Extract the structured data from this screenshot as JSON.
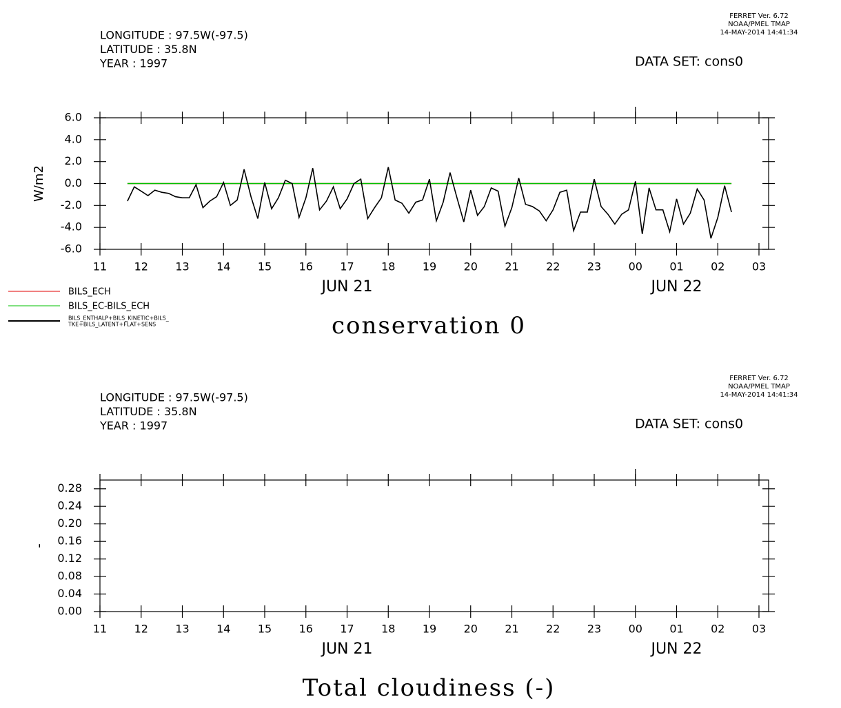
{
  "chart_data": [
    {
      "type": "line",
      "header": [
        "LONGITUDE : 97.5W(-97.5)",
        "LATITUDE : 35.8N",
        "YEAR : 1997"
      ],
      "dataset": "DATA SET: cons0",
      "stamp": [
        "FERRET Ver. 6.72",
        "NOAA/PMEL TMAP",
        "14-MAY-2014 14:41:34"
      ],
      "title": "conservation 0",
      "ylabel": "W/m2",
      "xlim": [
        11,
        27.24
      ],
      "ylim": [
        -6,
        6
      ],
      "xticks": [
        11,
        12,
        13,
        14,
        15,
        16,
        17,
        18,
        19,
        20,
        21,
        22,
        23,
        {
          "value": 24,
          "label": "00"
        },
        {
          "value": 25,
          "label": "01"
        },
        {
          "value": 26,
          "label": "02"
        },
        {
          "value": 27,
          "label": "03"
        }
      ],
      "date_labels": [
        {
          "value": 17,
          "label": "JUN 21"
        },
        {
          "value": 25,
          "label": "JUN 22"
        }
      ],
      "yticks": [
        {
          "value": 6,
          "label": "6.0"
        },
        {
          "value": 4,
          "label": "4.0"
        },
        {
          "value": 2,
          "label": "2.0"
        },
        {
          "value": 0,
          "label": "0.0"
        },
        {
          "value": -2,
          "label": "-2.0"
        },
        {
          "value": -4,
          "label": "-4.0"
        },
        {
          "value": -6,
          "label": "-6.0"
        }
      ],
      "legend": "bottom-left",
      "x": [
        11.667,
        11.833,
        12,
        12.167,
        12.333,
        12.5,
        12.667,
        12.833,
        13,
        13.167,
        13.333,
        13.5,
        13.667,
        13.833,
        14,
        14.167,
        14.333,
        14.5,
        14.667,
        14.833,
        15,
        15.167,
        15.333,
        15.5,
        15.667,
        15.833,
        16,
        16.167,
        16.333,
        16.5,
        16.667,
        16.833,
        17,
        17.167,
        17.333,
        17.5,
        17.667,
        17.833,
        18,
        18.167,
        18.333,
        18.5,
        18.667,
        18.833,
        19,
        19.167,
        19.333,
        19.5,
        19.667,
        19.833,
        20,
        20.167,
        20.333,
        20.5,
        20.667,
        20.833,
        21,
        21.167,
        21.333,
        21.5,
        21.667,
        21.833,
        22,
        22.167,
        22.333,
        22.5,
        22.667,
        22.833,
        23,
        23.167,
        23.333,
        23.5,
        23.667,
        23.833,
        24,
        24.167,
        24.333,
        24.5,
        24.667,
        24.833,
        25,
        25.167,
        25.333,
        25.5,
        25.667,
        25.833,
        26,
        26.167,
        26.333
      ],
      "series": [
        {
          "name": "BILS_ECH",
          "color": "#e00000",
          "values": [
            0,
            0,
            0,
            0,
            0,
            0,
            0,
            0,
            0,
            0,
            0,
            0,
            0,
            0,
            0,
            0,
            0,
            0,
            0,
            0,
            0,
            0,
            0,
            0,
            0,
            0,
            0,
            0,
            0,
            0,
            0,
            0,
            0,
            0,
            0,
            0,
            0,
            0,
            0,
            0,
            0,
            0,
            0,
            0,
            0,
            0,
            0,
            0,
            0,
            0,
            0,
            0,
            0,
            0,
            0,
            0,
            0,
            0,
            0,
            0,
            0,
            0,
            0,
            0,
            0,
            0,
            0,
            0,
            0,
            0,
            0,
            0,
            0,
            0,
            0,
            0,
            0,
            0,
            0,
            0,
            0,
            0,
            0,
            0,
            0,
            0,
            0,
            0,
            0
          ]
        },
        {
          "name": "BILS_EC-BILS_ECH",
          "color": "#00c000",
          "values": [
            0,
            0,
            0,
            0,
            0,
            0,
            0,
            0,
            0,
            0,
            0,
            0,
            0,
            0,
            0,
            0,
            0,
            0,
            0,
            0,
            0,
            0,
            0,
            0,
            0,
            0,
            0,
            0,
            0,
            0,
            0,
            0,
            0,
            0,
            0,
            0,
            0,
            0,
            0,
            0,
            0,
            0,
            0,
            0,
            0,
            0,
            0,
            0,
            0,
            0,
            0,
            0,
            0,
            0,
            0,
            0,
            0,
            0,
            0,
            0,
            0,
            0,
            0,
            0,
            0,
            0,
            0,
            0,
            0,
            0,
            0,
            0,
            0,
            0,
            0,
            0,
            0,
            0,
            0,
            0,
            0,
            0,
            0,
            0,
            0,
            0,
            0,
            0,
            0
          ]
        },
        {
          "name": [
            "BILS_ENTHALP+BILS_KINETIC+BILS_",
            "TKE+BILS_LATENT+FLAT+SENS"
          ],
          "color": "#000000",
          "values": [
            -1.6,
            -0.3,
            -0.7,
            -1.1,
            -0.6,
            -0.8,
            -0.9,
            -1.2,
            -1.3,
            -1.3,
            -0.1,
            -2.2,
            -1.6,
            -1.2,
            0.1,
            -2.0,
            -1.5,
            1.3,
            -1.2,
            -3.2,
            0.1,
            -2.3,
            -1.3,
            0.3,
            0.0,
            -3.1,
            -1.3,
            1.4,
            -2.4,
            -1.6,
            -0.3,
            -2.3,
            -1.4,
            0.0,
            0.4,
            -3.2,
            -2.2,
            -1.3,
            1.5,
            -1.5,
            -1.8,
            -2.7,
            -1.7,
            -1.5,
            0.4,
            -3.4,
            -1.7,
            1.0,
            -1.3,
            -3.5,
            -0.6,
            -2.9,
            -2.1,
            -0.4,
            -0.7,
            -3.9,
            -2.2,
            0.5,
            -1.9,
            -2.1,
            -2.5,
            -3.4,
            -2.4,
            -0.8,
            -0.6,
            -4.3,
            -2.6,
            -2.6,
            0.4,
            -2.1,
            -2.8,
            -3.7,
            -2.8,
            -2.4,
            0.2,
            -4.6,
            -0.4,
            -2.4,
            -2.4,
            -4.4,
            -1.4,
            -3.7,
            -2.7,
            -0.5,
            -1.5,
            -5.0,
            -3.1,
            -0.2,
            -2.6
          ]
        }
      ]
    },
    {
      "type": "line",
      "header": [
        "LONGITUDE : 97.5W(-97.5)",
        "LATITUDE : 35.8N",
        "YEAR : 1997"
      ],
      "dataset": "DATA SET: cons0",
      "stamp": [
        "FERRET Ver. 6.72",
        "NOAA/PMEL TMAP",
        "14-MAY-2014 14:41:34"
      ],
      "title": "Total cloudiness (-)",
      "ylabel": "-",
      "xlim": [
        11,
        27.24
      ],
      "ylim": [
        0,
        0.3
      ],
      "xticks": [
        11,
        12,
        13,
        14,
        15,
        16,
        17,
        18,
        19,
        20,
        21,
        22,
        23,
        {
          "value": 24,
          "label": "00"
        },
        {
          "value": 25,
          "label": "01"
        },
        {
          "value": 26,
          "label": "02"
        },
        {
          "value": 27,
          "label": "03"
        }
      ],
      "date_labels": [
        {
          "value": 17,
          "label": "JUN 21"
        },
        {
          "value": 25,
          "label": "JUN 22"
        }
      ],
      "yticks": [
        {
          "value": 0.28,
          "label": "0.28"
        },
        {
          "value": 0.24,
          "label": "0.24"
        },
        {
          "value": 0.2,
          "label": "0.20"
        },
        {
          "value": 0.16,
          "label": "0.16"
        },
        {
          "value": 0.12,
          "label": "0.12"
        },
        {
          "value": 0.08,
          "label": "0.08"
        },
        {
          "value": 0.04,
          "label": "0.04"
        },
        {
          "value": 0,
          "label": "0.00"
        }
      ],
      "x": [],
      "series": []
    }
  ]
}
